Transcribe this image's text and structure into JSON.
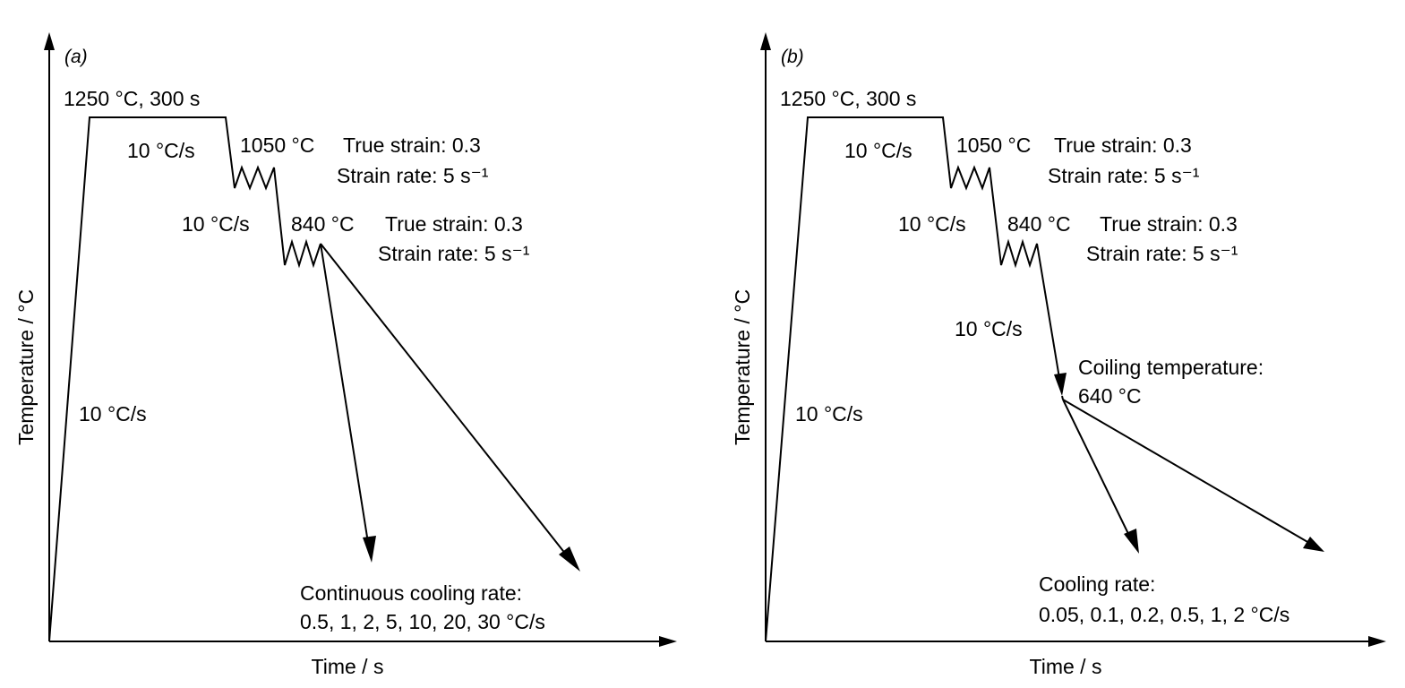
{
  "panels": [
    {
      "tag": "(a)",
      "ylabel": "Temperature / °C",
      "xlabel": "Time / s",
      "labels": {
        "soak": "1250 °C, 300 s",
        "rate1": "10 °C/s",
        "rate_heat": "10 °C/s",
        "rate2": "10 °C/s",
        "def1_temp": "1050 °C",
        "def1_strain": "True strain: 0.3",
        "def1_rate": "Strain rate: 5 s⁻¹",
        "def2_temp": "840 °C",
        "def2_strain": "True strain: 0.3",
        "def2_rate": "Strain rate: 5 s⁻¹",
        "cool_title": "Continuous cooling rate:",
        "cool_values": "0.5, 1, 2, 5, 10, 20, 30 °C/s"
      }
    },
    {
      "tag": "(b)",
      "ylabel": "Temperature / °C",
      "xlabel": "Time / s",
      "labels": {
        "soak": "1250 °C, 300 s",
        "rate1": "10 °C/s",
        "rate_heat": "10 °C/s",
        "rate2": "10 °C/s",
        "rate3": "10 °C/s",
        "def1_temp": "1050 °C",
        "def1_strain": "True strain: 0.3",
        "def1_rate": "Strain rate: 5 s⁻¹",
        "def2_temp": "840 °C",
        "def2_strain": "True strain: 0.3",
        "def2_rate": "Strain rate: 5 s⁻¹",
        "coil_title": "Coiling temperature:",
        "coil_temp": "640 °C",
        "cool_title": "Cooling rate:",
        "cool_values": "0.05, 0.1, 0.2, 0.5, 1, 2 °C/s"
      }
    }
  ]
}
